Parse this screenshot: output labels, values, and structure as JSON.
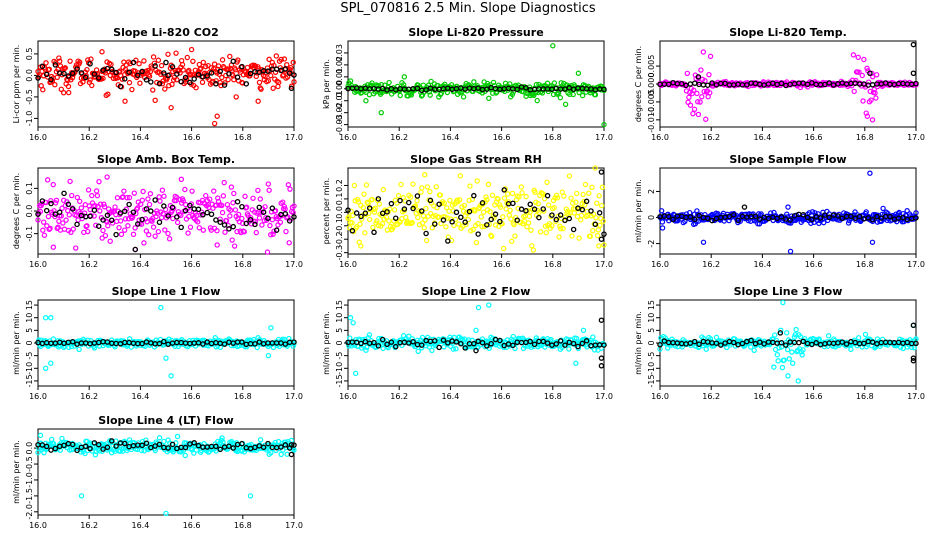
{
  "title": "SPL_070816  2.5 Min. Slope Diagnostics",
  "colors": {
    "overlay": "#000000"
  },
  "chart_data": [
    {
      "type": "scatter",
      "title": "Slope Li-820 CO2",
      "ylabel": "Li-cor ppm per min.",
      "color": "#ff0000",
      "xlim": [
        16.0,
        17.0
      ],
      "xticks": [
        "16.0",
        "16.2",
        "16.4",
        "16.6",
        "16.8",
        "17.0"
      ],
      "ylim": [
        -1.2,
        0.8
      ],
      "yticks": [
        -1.0,
        -0.5,
        0.0,
        0.5
      ],
      "ytick_labels": [
        "-1.0",
        "-0.5",
        "0.0",
        "0.5"
      ],
      "colored_points": {
        "n": 320,
        "center": 0.05,
        "spread": 0.18,
        "outliers": [
          [
            16.12,
            -0.4
          ],
          [
            16.34,
            -0.6
          ],
          [
            16.52,
            -0.75
          ],
          [
            16.69,
            -1.12
          ],
          [
            16.7,
            -0.95
          ],
          [
            16.86,
            -0.6
          ],
          [
            16.25,
            0.55
          ],
          [
            16.6,
            0.6
          ]
        ]
      },
      "black_points": {
        "n": 60,
        "center": 0.05,
        "spread": 0.12,
        "outliers": [
          [
            16.99,
            -0.3
          ],
          [
            16.5,
            0.3
          ]
        ]
      }
    },
    {
      "type": "scatter",
      "title": "Slope Li-820 Pressure",
      "ylabel": "kPa per min.",
      "color": "#00cc00",
      "xlim": [
        16.0,
        17.0
      ],
      "xticks": [
        "16.0",
        "16.2",
        "16.4",
        "16.6",
        "16.8",
        "17.0"
      ],
      "ylim": [
        -0.032,
        0.04
      ],
      "yticks": [
        -0.03,
        -0.02,
        -0.01,
        0.0,
        0.01,
        0.02,
        0.03
      ],
      "ytick_labels": [
        "-0.03",
        "-0.02",
        "-0.01",
        "0.00",
        "0.01",
        "0.02",
        "0.03"
      ],
      "colored_points": {
        "n": 300,
        "center": 0.0,
        "spread": 0.0028,
        "outliers": [
          [
            16.07,
            -0.01
          ],
          [
            16.13,
            -0.02
          ],
          [
            16.8,
            0.036
          ],
          [
            16.9,
            0.013
          ],
          [
            16.85,
            -0.013
          ],
          [
            17.0,
            -0.03
          ],
          [
            16.22,
            0.01
          ],
          [
            16.55,
            -0.008
          ]
        ]
      },
      "black_points": {
        "n": 60,
        "center": 0.0,
        "spread": 0.0005,
        "outliers": []
      }
    },
    {
      "type": "scatter",
      "title": "Slope Li-820 Temp.",
      "ylabel": "degrees C per min.",
      "color": "#ff00ff",
      "xlim": [
        16.0,
        17.0
      ],
      "xticks": [
        "16.0",
        "16.2",
        "16.4",
        "16.6",
        "16.8",
        "17.0"
      ],
      "ylim": [
        -0.012,
        0.012
      ],
      "yticks": [
        -0.01,
        -0.005,
        0.0,
        0.005
      ],
      "ytick_labels": [
        "-0.010",
        "-0.005",
        "0.000",
        "0.005"
      ],
      "colored_points": {
        "n": 320,
        "center": 0.0,
        "spread": 0.0003,
        "bursts": [
          [
            16.1,
            16.2,
            0.004
          ],
          [
            16.75,
            16.85,
            0.004
          ]
        ],
        "outliers": [
          [
            16.15,
            -0.0085
          ],
          [
            16.81,
            -0.009
          ],
          [
            16.83,
            -0.01
          ]
        ]
      },
      "black_points": {
        "n": 60,
        "center": 0.0,
        "spread": 0.0002,
        "outliers": [
          [
            16.99,
            0.011
          ],
          [
            16.99,
            0.003
          ],
          [
            16.15,
            0.002
          ],
          [
            16.82,
            0.003
          ]
        ]
      }
    },
    {
      "type": "scatter",
      "title": "Slope Amb. Box Temp.",
      "ylabel": "degrees C per min.",
      "color": "#ff00ff",
      "xlim": [
        16.0,
        17.0
      ],
      "xticks": [
        "16.0",
        "16.2",
        "16.4",
        "16.6",
        "16.8",
        "17.0"
      ],
      "ylim": [
        -0.19,
        0.19
      ],
      "yticks": [
        -0.1,
        0.0,
        0.1
      ],
      "ytick_labels": [
        "-0.1",
        "0.0",
        "0.1"
      ],
      "colored_points": {
        "n": 320,
        "center": -0.01,
        "spread": 0.06,
        "outliers": [
          [
            16.06,
            -0.16
          ],
          [
            16.38,
            -0.17
          ],
          [
            16.7,
            -0.15
          ],
          [
            16.27,
            0.15
          ],
          [
            16.56,
            0.14
          ]
        ]
      },
      "black_points": {
        "n": 60,
        "center": -0.01,
        "spread": 0.04,
        "outliers": [
          [
            16.38,
            -0.17
          ]
        ]
      }
    },
    {
      "type": "scatter",
      "title": "Slope Gas Stream RH",
      "ylabel": "percent per min.",
      "color": "#ffff00",
      "xlim": [
        16.0,
        17.0
      ],
      "xticks": [
        "16.0",
        "16.2",
        "16.4",
        "16.6",
        "16.8",
        "17.0"
      ],
      "ylim": [
        -0.31,
        0.33
      ],
      "yticks": [
        -0.3,
        -0.2,
        -0.1,
        0.0,
        0.1,
        0.2
      ],
      "ytick_labels": [
        "-0.3",
        "-0.2",
        "-0.1",
        "0.0",
        "0.1",
        "0.2"
      ],
      "colored_points": {
        "n": 320,
        "center": 0.0,
        "spread": 0.1,
        "outliers": [
          [
            16.05,
            -0.25
          ],
          [
            16.98,
            -0.25
          ],
          [
            16.3,
            0.28
          ]
        ]
      },
      "black_points": {
        "n": 60,
        "center": 0.0,
        "spread": 0.08,
        "outliers": [
          [
            16.99,
            0.3
          ],
          [
            16.99,
            -0.2
          ]
        ]
      }
    },
    {
      "type": "scatter",
      "title": "Slope Sample Flow",
      "ylabel": "ml/min per min.",
      "color": "#0000ff",
      "xlim": [
        16.0,
        17.0
      ],
      "xticks": [
        "16.0",
        "16.2",
        "16.4",
        "16.6",
        "16.8",
        "17.0"
      ],
      "ylim": [
        -2.8,
        3.8
      ],
      "yticks": [
        -2,
        0,
        2
      ],
      "ytick_labels": [
        "-2",
        "0",
        "2"
      ],
      "colored_points": {
        "n": 320,
        "center": 0.0,
        "spread": 0.22,
        "outliers": [
          [
            16.17,
            -1.9
          ],
          [
            16.51,
            -2.6
          ],
          [
            16.82,
            3.4
          ],
          [
            16.83,
            -1.9
          ],
          [
            16.5,
            0.8
          ],
          [
            16.01,
            -0.8
          ]
        ]
      },
      "black_points": {
        "n": 60,
        "center": 0.0,
        "spread": 0.12,
        "outliers": [
          [
            16.33,
            0.8
          ]
        ]
      }
    },
    {
      "type": "scatter",
      "title": "Slope Line 1 Flow",
      "ylabel": "ml/min per min.",
      "color": "#00ffff",
      "xlim": [
        16.0,
        17.0
      ],
      "xticks": [
        "16.0",
        "16.2",
        "16.4",
        "16.6",
        "16.8",
        "17.0"
      ],
      "ylim": [
        -17,
        17
      ],
      "yticks": [
        -15,
        -10,
        -5,
        0,
        5,
        10,
        15
      ],
      "ytick_labels": [
        "-15",
        "-10",
        "-5",
        "0",
        "5",
        "10",
        "15"
      ],
      "colored_points": {
        "n": 300,
        "center": 0.0,
        "spread": 0.9,
        "outliers": [
          [
            16.03,
            10
          ],
          [
            16.05,
            10
          ],
          [
            16.03,
            -10
          ],
          [
            16.05,
            -8
          ],
          [
            16.48,
            14
          ],
          [
            16.5,
            -6
          ],
          [
            16.52,
            -13
          ],
          [
            16.91,
            6
          ],
          [
            16.9,
            -5
          ]
        ]
      },
      "black_points": {
        "n": 60,
        "center": 0.0,
        "spread": 0.25,
        "outliers": []
      }
    },
    {
      "type": "scatter",
      "title": "Slope Line 2 Flow",
      "ylabel": "ml/min per min.",
      "color": "#00ffff",
      "xlim": [
        16.0,
        17.0
      ],
      "xticks": [
        "16.0",
        "16.2",
        "16.4",
        "16.6",
        "16.8",
        "17.0"
      ],
      "ylim": [
        -17,
        17
      ],
      "yticks": [
        -15,
        -10,
        -5,
        0,
        5,
        10,
        15
      ],
      "ytick_labels": [
        "-15",
        "-10",
        "-5",
        "0",
        "5",
        "10",
        "15"
      ],
      "colored_points": {
        "n": 300,
        "center": 0.0,
        "spread": 1.3,
        "outliers": [
          [
            16.01,
            10
          ],
          [
            16.02,
            8
          ],
          [
            16.03,
            -12
          ],
          [
            16.51,
            14
          ],
          [
            16.55,
            15
          ],
          [
            16.5,
            5
          ],
          [
            16.89,
            -8
          ],
          [
            16.92,
            5
          ]
        ]
      },
      "black_points": {
        "n": 60,
        "center": 0.0,
        "spread": 0.8,
        "outliers": [
          [
            16.99,
            9
          ],
          [
            16.99,
            -6
          ],
          [
            16.99,
            -9
          ],
          [
            16.5,
            -3
          ]
        ]
      }
    },
    {
      "type": "scatter",
      "title": "Slope Line 3 Flow",
      "ylabel": "ml/min per min.",
      "color": "#00ffff",
      "xlim": [
        16.0,
        17.0
      ],
      "xticks": [
        "16.0",
        "16.2",
        "16.4",
        "16.6",
        "16.8",
        "17.0"
      ],
      "ylim": [
        -17,
        17
      ],
      "yticks": [
        -15,
        -10,
        -5,
        0,
        5,
        10,
        15
      ],
      "ytick_labels": [
        "-15",
        "-10",
        "-5",
        "0",
        "5",
        "10",
        "15"
      ],
      "colored_points": {
        "n": 300,
        "center": 0.0,
        "spread": 1.0,
        "bursts": [
          [
            16.44,
            16.56,
            4
          ]
        ],
        "outliers": [
          [
            16.48,
            16
          ],
          [
            16.5,
            -13
          ],
          [
            16.54,
            -15
          ],
          [
            16.03,
            -2
          ],
          [
            16.99,
            7
          ]
        ]
      },
      "black_points": {
        "n": 60,
        "center": 0.0,
        "spread": 0.4,
        "outliers": [
          [
            16.99,
            7
          ],
          [
            16.99,
            -6
          ],
          [
            16.99,
            -7
          ],
          [
            16.47,
            4
          ]
        ]
      }
    },
    {
      "type": "scatter",
      "title": "Slope Line 4 (LT) Flow",
      "ylabel": "ml/min per min.",
      "color": "#00ffff",
      "xlim": [
        16.0,
        17.0
      ],
      "xticks": [
        "16.0",
        "16.2",
        "16.4",
        "16.6",
        "16.8",
        "17.0"
      ],
      "ylim": [
        -2.1,
        0.6
      ],
      "yticks": [
        -2.0,
        -1.5,
        -1.0,
        -0.5,
        0.0
      ],
      "ytick_labels": [
        "-2.0",
        "-1.5",
        "-1.0",
        "-0.5",
        "0.0"
      ],
      "colored_points": {
        "n": 300,
        "center": 0.05,
        "spread": 0.1,
        "outliers": [
          [
            16.17,
            -1.5
          ],
          [
            16.83,
            -1.5
          ],
          [
            16.5,
            -2.05
          ],
          [
            16.01,
            0.4
          ]
        ]
      },
      "black_points": {
        "n": 60,
        "center": 0.05,
        "spread": 0.06,
        "outliers": [
          [
            16.99,
            -0.2
          ],
          [
            16.99,
            0.1
          ]
        ]
      }
    }
  ]
}
